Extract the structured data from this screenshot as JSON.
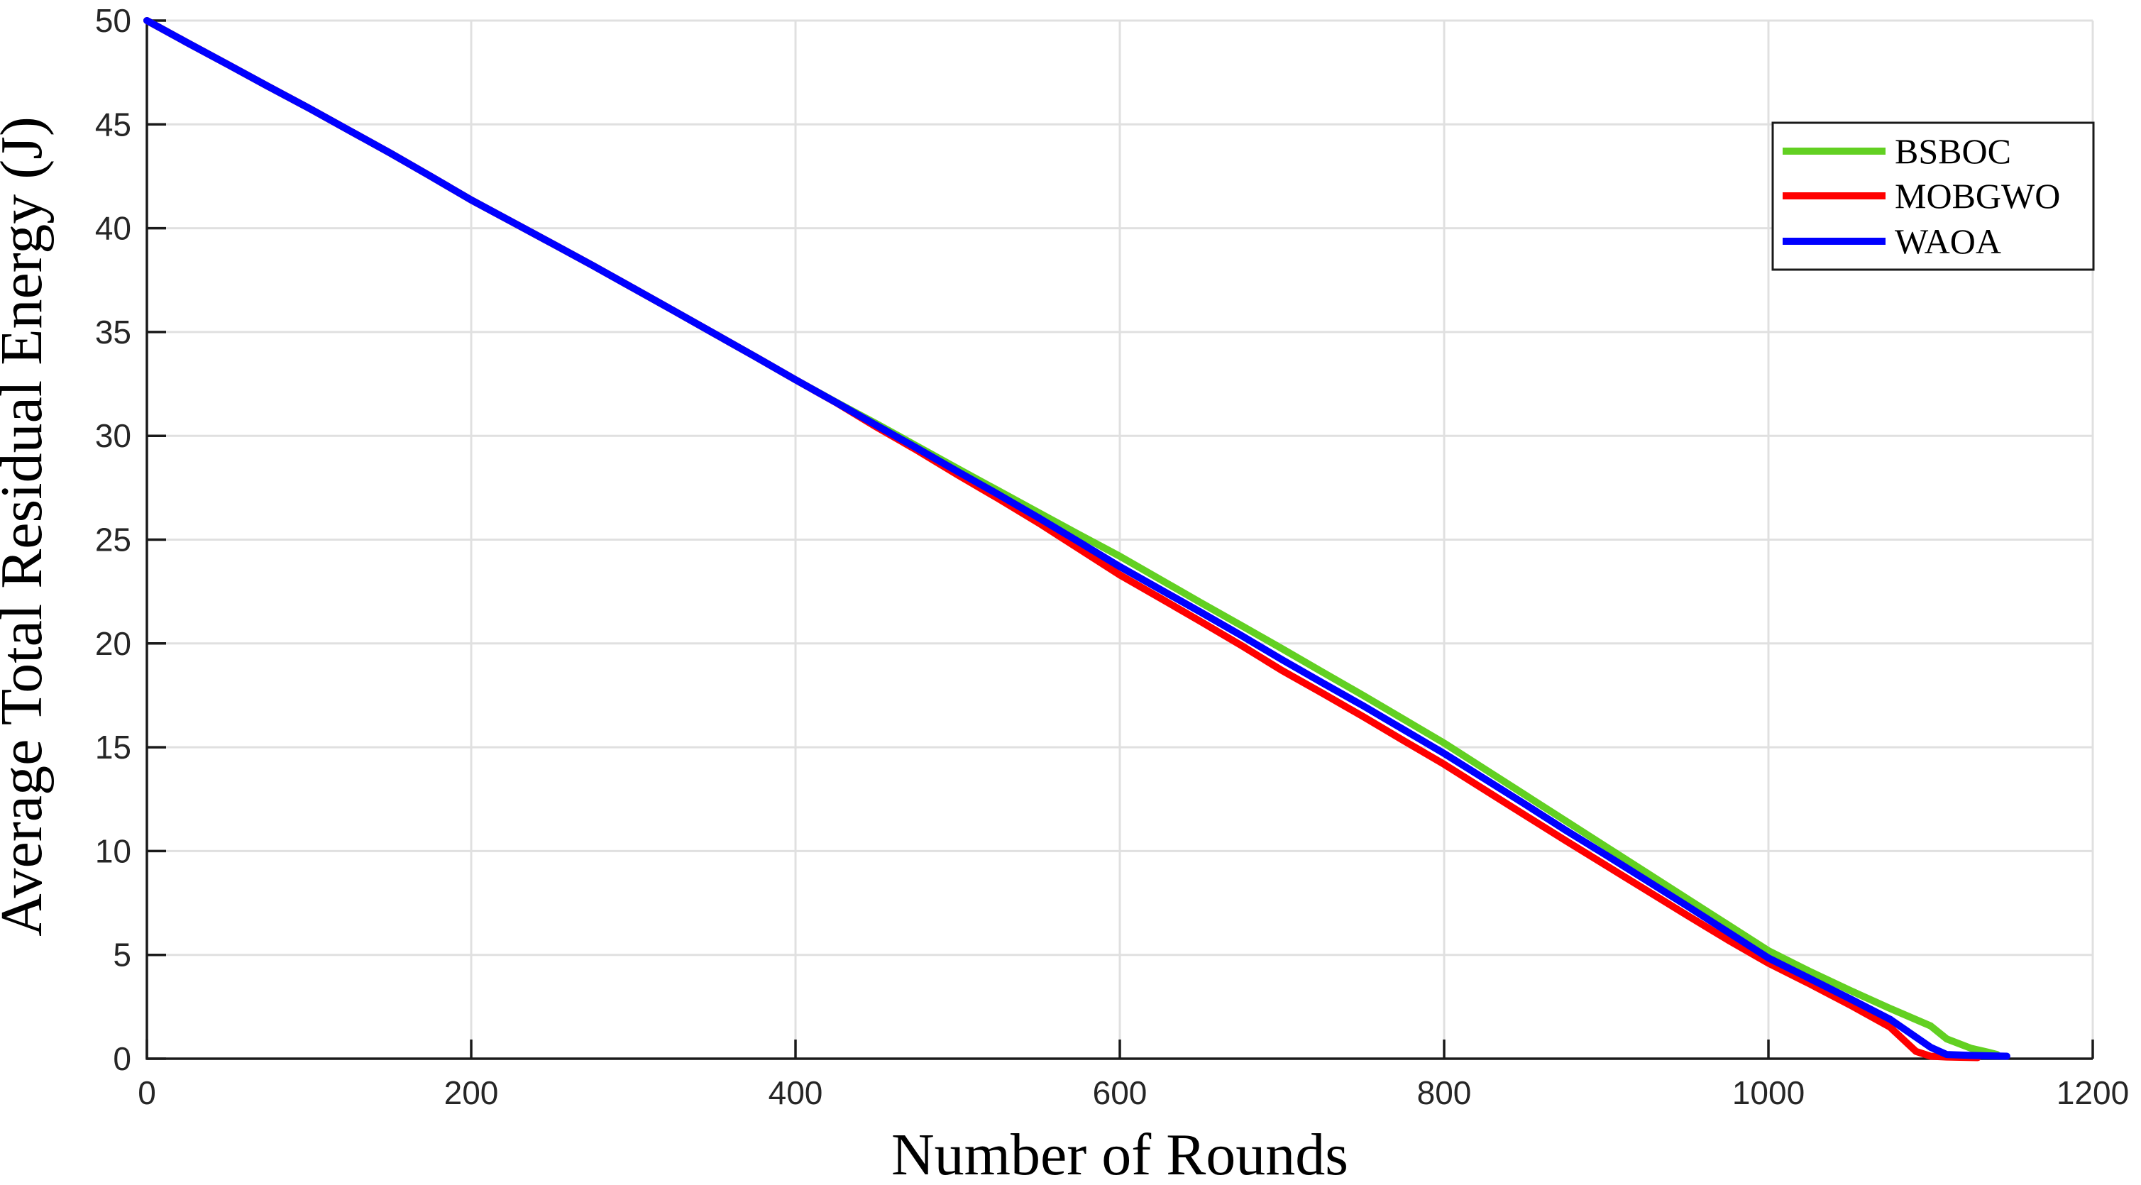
{
  "figure": {
    "background": "#ffffff"
  },
  "style": {
    "grid_color": "#e0e0e0",
    "frame_color": "#e0e0e0",
    "axis_color": "#1a1a1a",
    "tick_label_color": "#262626",
    "legend_border_color": "#1a1a1a",
    "line_width": 10
  },
  "chart_data": {
    "type": "line",
    "title": "",
    "xlabel": "Number of Rounds",
    "ylabel": "Average Total Residual Energy (J)",
    "xlim": [
      0,
      1200
    ],
    "ylim": [
      0,
      50
    ],
    "x_ticks": [
      0,
      200,
      400,
      600,
      800,
      1000,
      1200
    ],
    "y_ticks": [
      0,
      5,
      10,
      15,
      20,
      25,
      30,
      35,
      40,
      45,
      50
    ],
    "grid": true,
    "legend": {
      "position": "upper-right",
      "border": true,
      "labels": [
        "BSBOC",
        "MOBGWO",
        "WAOA"
      ]
    },
    "series": [
      {
        "name": "BSBOC",
        "color": "#62d022",
        "points": [
          [
            0,
            50
          ],
          [
            25,
            48.93
          ],
          [
            50,
            47.88
          ],
          [
            75,
            46.82
          ],
          [
            100,
            45.78
          ],
          [
            125,
            44.7
          ],
          [
            150,
            43.62
          ],
          [
            175,
            42.5
          ],
          [
            200,
            41.36
          ],
          [
            225,
            40.31
          ],
          [
            250,
            39.26
          ],
          [
            275,
            38.2
          ],
          [
            300,
            37.11
          ],
          [
            325,
            36.02
          ],
          [
            350,
            34.92
          ],
          [
            375,
            33.82
          ],
          [
            400,
            32.7
          ],
          [
            425,
            31.62
          ],
          [
            450,
            30.58
          ],
          [
            475,
            29.5
          ],
          [
            500,
            28.42
          ],
          [
            525,
            27.36
          ],
          [
            550,
            26.3
          ],
          [
            575,
            25.24
          ],
          [
            600,
            24.2
          ],
          [
            625,
            23.08
          ],
          [
            650,
            21.96
          ],
          [
            675,
            20.86
          ],
          [
            700,
            19.75
          ],
          [
            725,
            18.62
          ],
          [
            750,
            17.5
          ],
          [
            775,
            16.35
          ],
          [
            800,
            15.2
          ],
          [
            825,
            13.95
          ],
          [
            850,
            12.7
          ],
          [
            875,
            11.45
          ],
          [
            900,
            10.2
          ],
          [
            925,
            8.95
          ],
          [
            950,
            7.7
          ],
          [
            975,
            6.45
          ],
          [
            1000,
            5.2
          ],
          [
            1025,
            4.22
          ],
          [
            1050,
            3.3
          ],
          [
            1075,
            2.42
          ],
          [
            1100,
            1.58
          ],
          [
            1110,
            0.95
          ],
          [
            1125,
            0.5
          ],
          [
            1135,
            0.32
          ],
          [
            1141,
            0.2
          ]
        ]
      },
      {
        "name": "MOBGWO",
        "color": "#ff0000",
        "points": [
          [
            0,
            50
          ],
          [
            25,
            48.93
          ],
          [
            50,
            47.88
          ],
          [
            75,
            46.82
          ],
          [
            100,
            45.78
          ],
          [
            125,
            44.7
          ],
          [
            150,
            43.62
          ],
          [
            175,
            42.5
          ],
          [
            200,
            41.36
          ],
          [
            225,
            40.31
          ],
          [
            250,
            39.26
          ],
          [
            275,
            38.2
          ],
          [
            300,
            37.11
          ],
          [
            325,
            36.02
          ],
          [
            350,
            34.92
          ],
          [
            375,
            33.82
          ],
          [
            400,
            32.7
          ],
          [
            425,
            31.6
          ],
          [
            450,
            30.42
          ],
          [
            475,
            29.3
          ],
          [
            500,
            28.12
          ],
          [
            525,
            26.98
          ],
          [
            550,
            25.8
          ],
          [
            575,
            24.55
          ],
          [
            600,
            23.3
          ],
          [
            625,
            22.18
          ],
          [
            650,
            21.05
          ],
          [
            675,
            19.9
          ],
          [
            700,
            18.7
          ],
          [
            725,
            17.6
          ],
          [
            750,
            16.48
          ],
          [
            775,
            15.32
          ],
          [
            800,
            14.18
          ],
          [
            825,
            12.95
          ],
          [
            850,
            11.72
          ],
          [
            875,
            10.5
          ],
          [
            900,
            9.3
          ],
          [
            925,
            8.1
          ],
          [
            950,
            6.9
          ],
          [
            975,
            5.72
          ],
          [
            1000,
            4.6
          ],
          [
            1025,
            3.62
          ],
          [
            1050,
            2.6
          ],
          [
            1075,
            1.52
          ],
          [
            1091,
            0.35
          ],
          [
            1100,
            0.12
          ],
          [
            1110,
            0.08
          ],
          [
            1129,
            0.05
          ]
        ]
      },
      {
        "name": "WAOA",
        "color": "#0000ff",
        "points": [
          [
            0,
            50
          ],
          [
            25,
            48.93
          ],
          [
            50,
            47.88
          ],
          [
            75,
            46.82
          ],
          [
            100,
            45.78
          ],
          [
            125,
            44.7
          ],
          [
            150,
            43.62
          ],
          [
            175,
            42.5
          ],
          [
            200,
            41.36
          ],
          [
            225,
            40.31
          ],
          [
            250,
            39.26
          ],
          [
            275,
            38.2
          ],
          [
            300,
            37.11
          ],
          [
            325,
            36.02
          ],
          [
            350,
            34.92
          ],
          [
            375,
            33.82
          ],
          [
            400,
            32.7
          ],
          [
            425,
            31.61
          ],
          [
            450,
            30.5
          ],
          [
            475,
            29.4
          ],
          [
            500,
            28.28
          ],
          [
            525,
            27.18
          ],
          [
            550,
            26.05
          ],
          [
            575,
            24.88
          ],
          [
            600,
            23.7
          ],
          [
            625,
            22.6
          ],
          [
            650,
            21.5
          ],
          [
            675,
            20.38
          ],
          [
            700,
            19.22
          ],
          [
            725,
            18.1
          ],
          [
            750,
            17.0
          ],
          [
            775,
            15.85
          ],
          [
            800,
            14.7
          ],
          [
            825,
            13.48
          ],
          [
            850,
            12.25
          ],
          [
            875,
            11.0
          ],
          [
            900,
            9.8
          ],
          [
            925,
            8.58
          ],
          [
            950,
            7.35
          ],
          [
            975,
            6.1
          ],
          [
            1000,
            4.85
          ],
          [
            1025,
            3.88
          ],
          [
            1050,
            2.9
          ],
          [
            1075,
            1.9
          ],
          [
            1100,
            0.55
          ],
          [
            1110,
            0.2
          ],
          [
            1125,
            0.16
          ],
          [
            1147,
            0.12
          ]
        ]
      }
    ]
  }
}
